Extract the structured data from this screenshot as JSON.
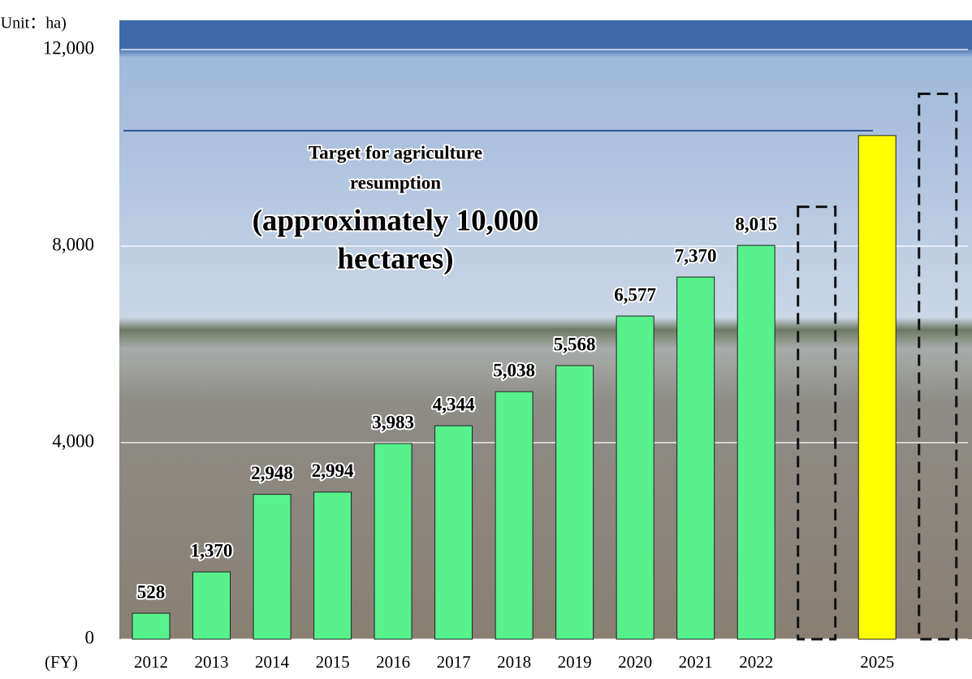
{
  "chart_data": {
    "type": "bar",
    "unit_label": "(Unit：ha)",
    "x_label": "(FY)",
    "categories": [
      "2012",
      "2013",
      "2014",
      "2015",
      "2016",
      "2017",
      "2018",
      "2019",
      "2020",
      "2021",
      "2022",
      null,
      "2025",
      null
    ],
    "values": [
      528,
      1370,
      2948,
      2994,
      3983,
      4344,
      5038,
      5568,
      6577,
      7370,
      8015,
      null,
      10250,
      null
    ],
    "value_labels": [
      "528",
      "1,370",
      "2,948",
      "2,994",
      "3,983",
      "4,344",
      "5,038",
      "5,568",
      "6,577",
      "7,370",
      "8,015",
      null,
      null,
      null
    ],
    "colors": [
      "#57f28c",
      "#57f28c",
      "#57f28c",
      "#57f28c",
      "#57f28c",
      "#57f28c",
      "#57f28c",
      "#57f28c",
      "#57f28c",
      "#57f28c",
      "#57f28c",
      null,
      "#ffff00",
      null
    ],
    "dashed_values": [
      null,
      null,
      null,
      null,
      null,
      null,
      null,
      null,
      null,
      null,
      null,
      8800,
      null,
      11100
    ],
    "target_value": 10350,
    "annotation_lines": [
      "Target for agriculture",
      "resumption",
      "(approximately 10,000",
      "hectares)"
    ],
    "ylim": [
      0,
      12000
    ],
    "yticks": [
      0,
      {
        "value": 4000,
        "label": "4,000"
      },
      {
        "value": 8000,
        "label": "8,000"
      },
      {
        "value": 12000,
        "label": "12,000"
      }
    ],
    "grid": true
  }
}
